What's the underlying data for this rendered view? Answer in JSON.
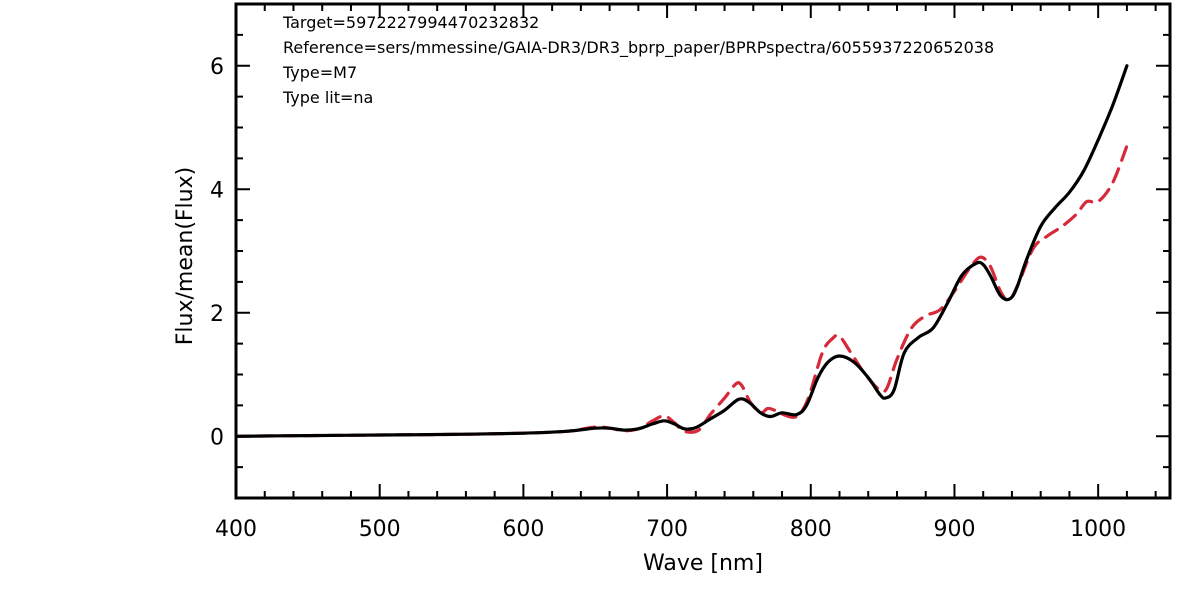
{
  "chart_data": {
    "type": "line",
    "xlabel": "Wave [nm]",
    "ylabel": "Flux/mean(Flux)",
    "xlim": [
      400,
      1050
    ],
    "ylim": [
      -1,
      7
    ],
    "xticks": [
      400,
      500,
      600,
      700,
      800,
      900,
      1000
    ],
    "yticks": [
      0,
      2,
      4,
      6
    ],
    "annotations": [
      "Target=5972227994470232832",
      "Reference=sers/mmessine/GAIA-DR3/DR3_bprp_paper/BPRPspectra/6055937220652038",
      "Type=M7",
      "Type lit=na"
    ],
    "series": [
      {
        "color": "#000000",
        "style": "solid",
        "x": [
          400,
          450,
          500,
          550,
          600,
          630,
          650,
          660,
          670,
          680,
          690,
          698,
          705,
          712,
          720,
          730,
          740,
          750,
          757,
          765,
          772,
          780,
          790,
          797,
          805,
          812,
          820,
          830,
          840,
          848,
          852,
          858,
          865,
          875,
          885,
          895,
          905,
          915,
          920,
          925,
          932,
          938,
          943,
          950,
          960,
          970,
          980,
          990,
          1000,
          1010,
          1020
        ],
        "y": [
          0.0,
          0.01,
          0.02,
          0.03,
          0.05,
          0.08,
          0.13,
          0.13,
          0.1,
          0.12,
          0.2,
          0.25,
          0.2,
          0.12,
          0.14,
          0.28,
          0.42,
          0.6,
          0.55,
          0.38,
          0.32,
          0.38,
          0.35,
          0.5,
          0.95,
          1.2,
          1.3,
          1.2,
          0.95,
          0.68,
          0.62,
          0.75,
          1.35,
          1.6,
          1.75,
          2.15,
          2.6,
          2.8,
          2.78,
          2.6,
          2.28,
          2.22,
          2.38,
          2.85,
          3.4,
          3.7,
          3.95,
          4.3,
          4.8,
          5.35,
          6.0
        ]
      },
      {
        "color": "#d6293a",
        "style": "dashed",
        "x": [
          400,
          450,
          500,
          550,
          600,
          630,
          650,
          660,
          670,
          680,
          690,
          698,
          705,
          712,
          722,
          730,
          740,
          748,
          752,
          758,
          765,
          770,
          775,
          780,
          790,
          798,
          808,
          815,
          820,
          828,
          838,
          848,
          853,
          860,
          870,
          880,
          890,
          900,
          910,
          918,
          925,
          932,
          938,
          945,
          955,
          965,
          975,
          985,
          992,
          1000,
          1010,
          1020
        ],
        "y": [
          0.0,
          0.01,
          0.02,
          0.03,
          0.05,
          0.08,
          0.15,
          0.13,
          0.09,
          0.12,
          0.25,
          0.33,
          0.22,
          0.08,
          0.1,
          0.35,
          0.62,
          0.85,
          0.82,
          0.55,
          0.38,
          0.45,
          0.42,
          0.36,
          0.32,
          0.6,
          1.35,
          1.58,
          1.62,
          1.35,
          1.0,
          0.75,
          0.78,
          1.25,
          1.75,
          1.95,
          2.05,
          2.35,
          2.7,
          2.9,
          2.75,
          2.35,
          2.2,
          2.5,
          3.05,
          3.25,
          3.4,
          3.6,
          3.8,
          3.8,
          4.1,
          4.7
        ]
      }
    ]
  }
}
